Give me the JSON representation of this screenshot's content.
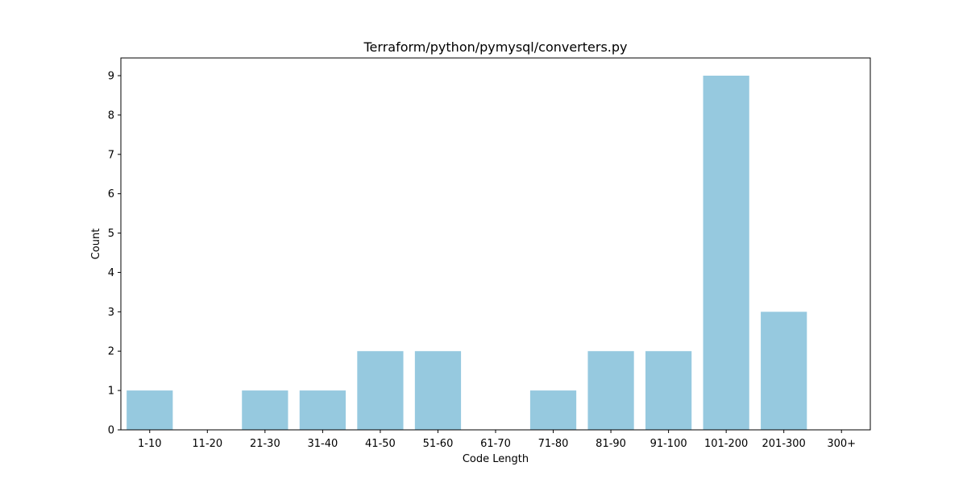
{
  "chart_data": {
    "type": "bar",
    "title": "Terraform/python/pymysql/converters.py",
    "xlabel": "Code Length",
    "ylabel": "Count",
    "categories": [
      "1-10",
      "11-20",
      "21-30",
      "31-40",
      "41-50",
      "51-60",
      "61-70",
      "71-80",
      "81-90",
      "91-100",
      "101-200",
      "201-300",
      "300+"
    ],
    "values": [
      1,
      0,
      1,
      1,
      2,
      2,
      0,
      1,
      2,
      2,
      9,
      3,
      0
    ],
    "ylim": [
      0,
      9.45
    ],
    "yticks": [
      0,
      1,
      2,
      3,
      4,
      5,
      6,
      7,
      8,
      9
    ],
    "grid": false,
    "legend": "none",
    "bar_color": "#96c9df"
  }
}
